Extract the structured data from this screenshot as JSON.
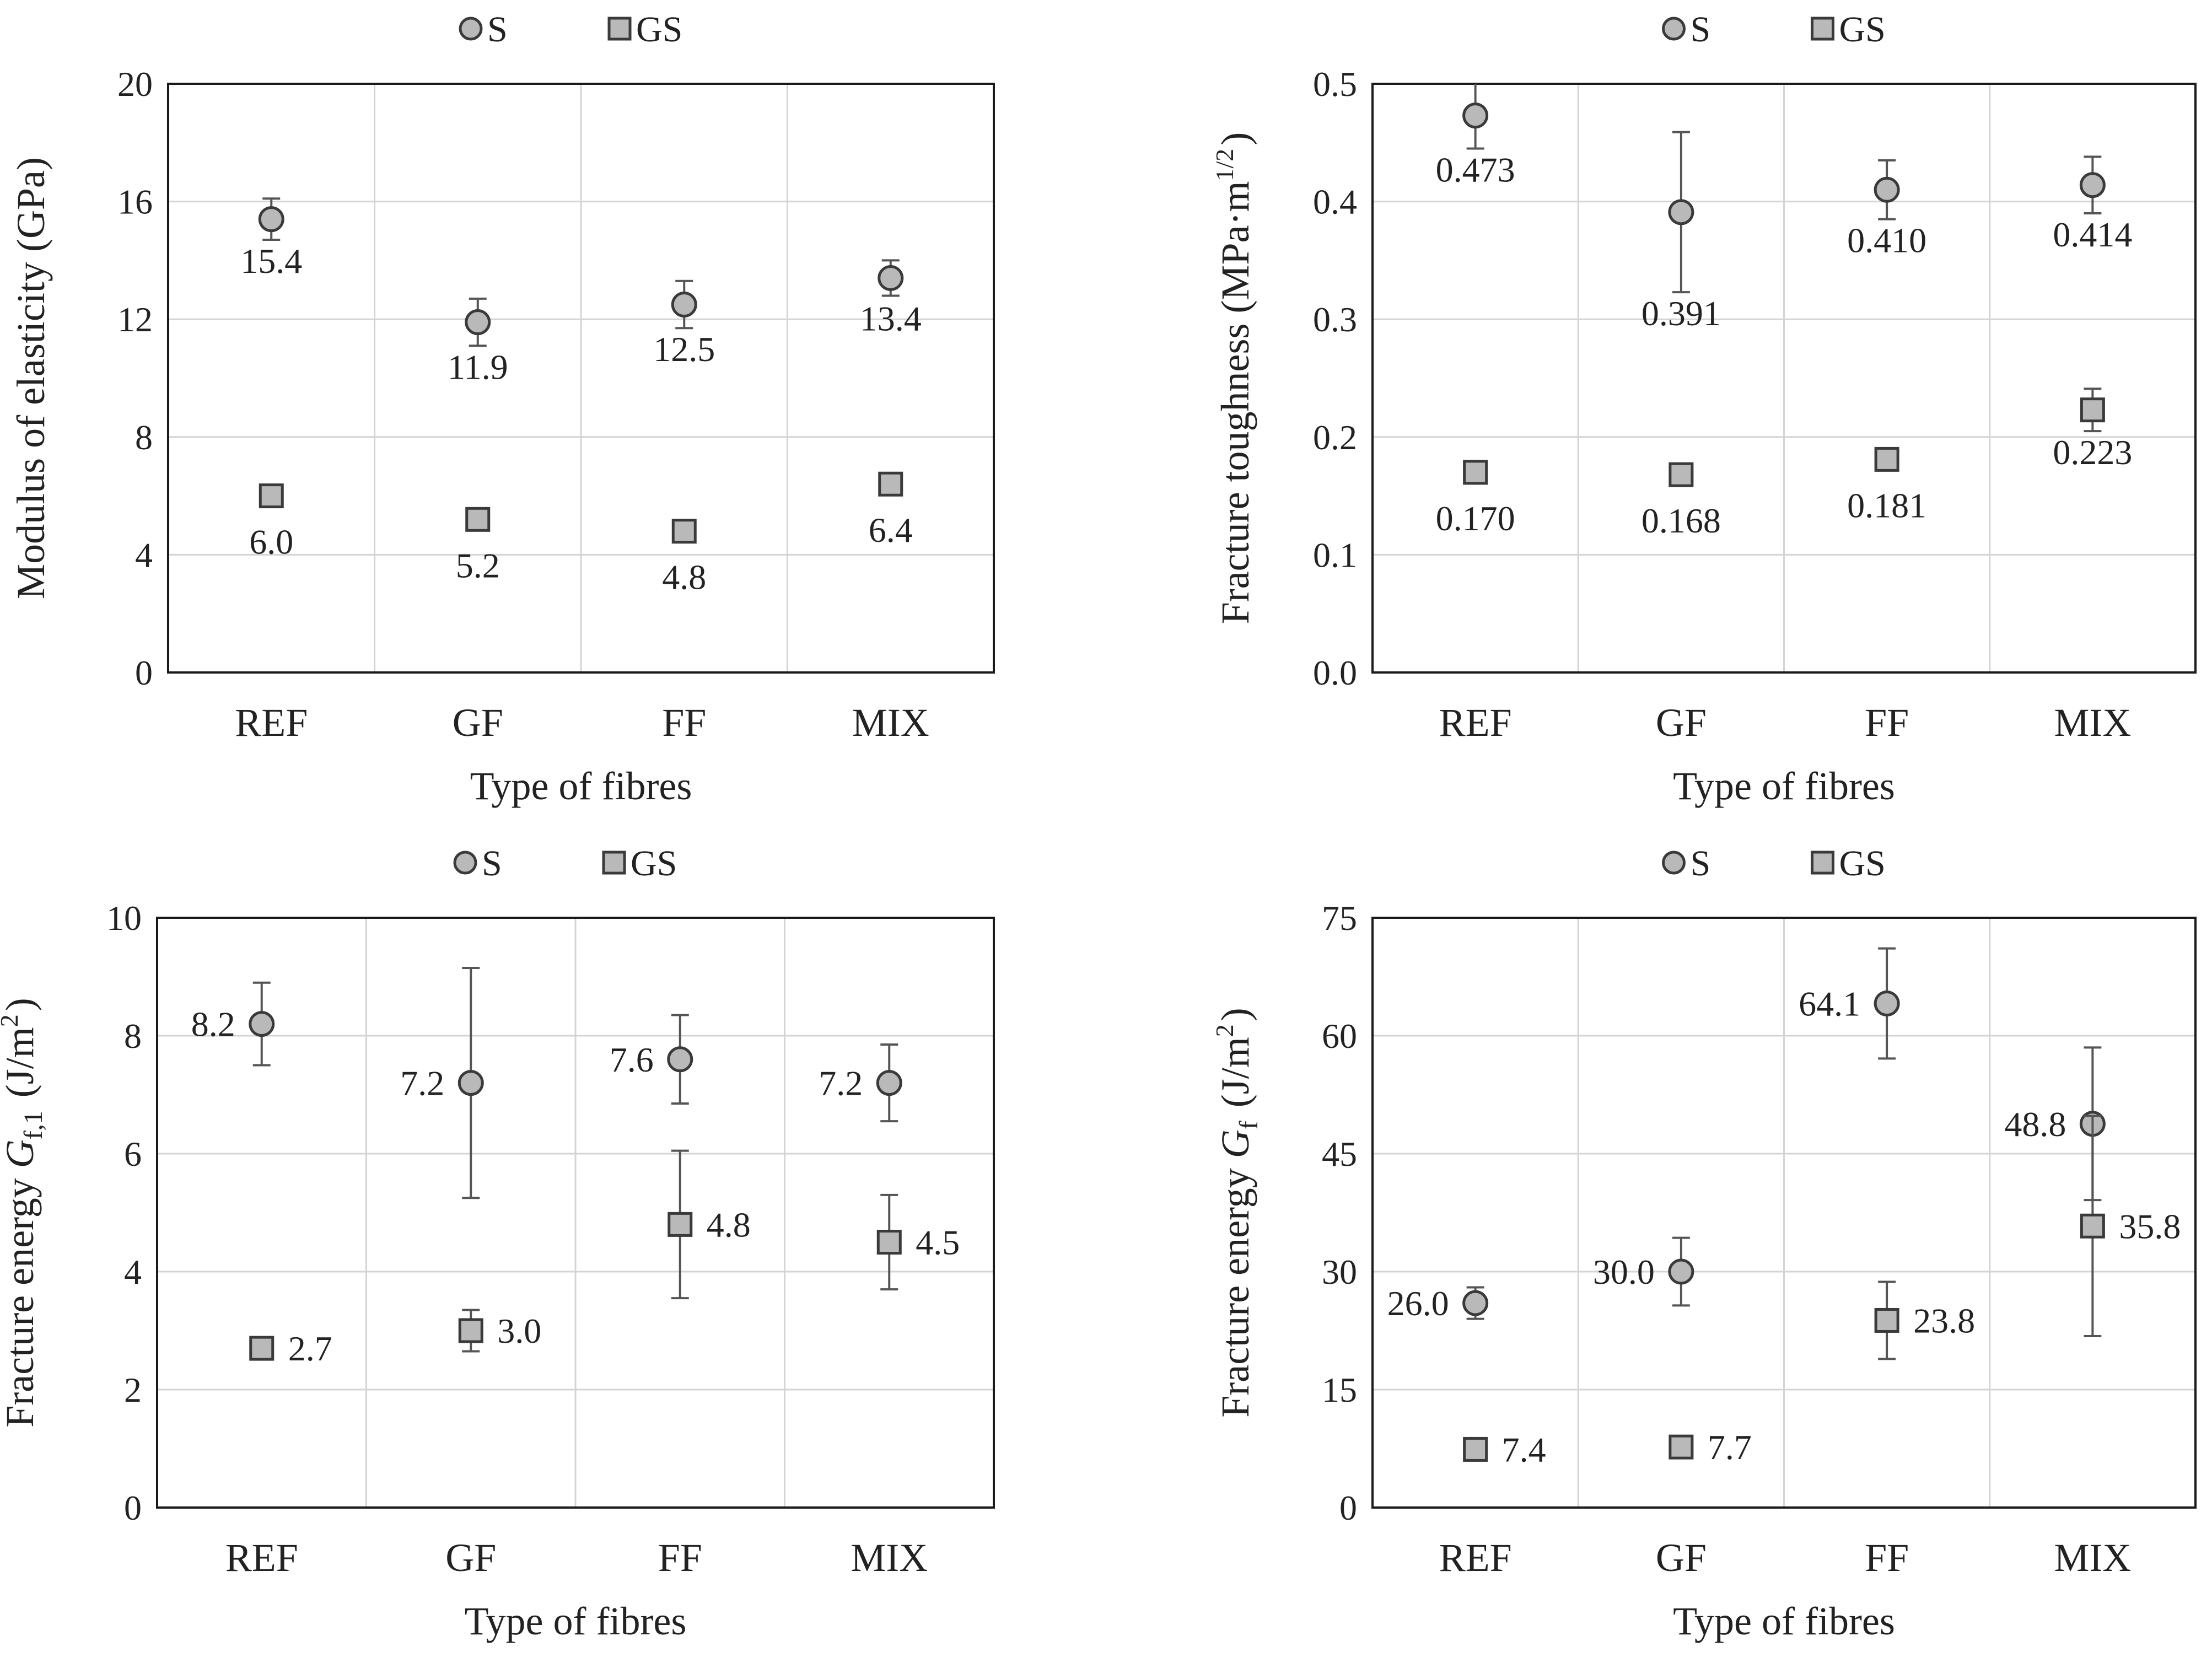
{
  "chart_data": [
    {
      "type": "scatter",
      "xlabel": "Type of fibres",
      "ylabel": "Modulus of elasticity (GPa)",
      "ylim": [
        0,
        20
      ],
      "yticks": [
        0,
        4,
        8,
        12,
        16,
        20
      ],
      "yticklabels": [
        "0",
        "4",
        "8",
        "12",
        "16",
        "20"
      ],
      "grid": true,
      "legend": "top-center",
      "categories": [
        "REF",
        "GF",
        "FF",
        "MIX"
      ],
      "series": [
        {
          "name": "S",
          "marker": "circle",
          "values": [
            15.4,
            11.9,
            12.5,
            13.4
          ],
          "errors": [
            0.7,
            0.8,
            0.8,
            0.6
          ],
          "labels": [
            "15.4",
            "11.9",
            "12.5",
            "13.4"
          ]
        },
        {
          "name": "GS",
          "marker": "square",
          "values": [
            6.0,
            5.2,
            4.8,
            6.4
          ],
          "errors": [
            0,
            0,
            0,
            0
          ],
          "labels": [
            "6.0",
            "5.2",
            "4.8",
            "6.4"
          ]
        }
      ]
    },
    {
      "type": "scatter",
      "xlabel": "Type of fibres",
      "ylabel": "Fracture toughness (MPa·m",
      "ylabel_sup": "1/2",
      "ylabel_suffix": ")",
      "ylim": [
        0,
        0.5
      ],
      "yticks": [
        0,
        0.1,
        0.2,
        0.3,
        0.4,
        0.5
      ],
      "yticklabels": [
        "0.0",
        "0.1",
        "0.2",
        "0.3",
        "0.4",
        "0.5"
      ],
      "grid": true,
      "legend": "top-center",
      "categories": [
        "REF",
        "GF",
        "FF",
        "MIX"
      ],
      "series": [
        {
          "name": "S",
          "marker": "circle",
          "values": [
            0.473,
            0.391,
            0.41,
            0.414
          ],
          "errors": [
            0.028,
            0.068,
            0.025,
            0.024
          ],
          "labels": [
            "0.473",
            "0.391",
            "0.410",
            "0.414"
          ]
        },
        {
          "name": "GS",
          "marker": "square",
          "values": [
            0.17,
            0.168,
            0.181,
            0.223
          ],
          "errors": [
            0,
            0,
            0,
            0.018
          ],
          "labels": [
            "0.170",
            "0.168",
            "0.181",
            "0.223"
          ]
        }
      ]
    },
    {
      "type": "scatter",
      "xlabel": "Type of fibres",
      "ylabel": "Fracture energy ",
      "ylabel_italic": "G",
      "ylabel_sub": "f,1",
      "ylabel_unit": " (J/m",
      "ylabel_unit_sup": "2",
      "ylabel_suffix": ")",
      "ylim": [
        0,
        10
      ],
      "yticks": [
        0,
        2,
        4,
        6,
        8,
        10
      ],
      "yticklabels": [
        "0",
        "2",
        "4",
        "6",
        "8",
        "10"
      ],
      "grid": true,
      "legend": "top-center",
      "categories": [
        "REF",
        "GF",
        "FF",
        "MIX"
      ],
      "series": [
        {
          "name": "S",
          "marker": "circle",
          "values": [
            8.2,
            7.2,
            7.6,
            7.2
          ],
          "errors": [
            0.7,
            1.95,
            0.75,
            0.65
          ],
          "labels": [
            "8.2",
            "7.2",
            "7.6",
            "7.2"
          ]
        },
        {
          "name": "GS",
          "marker": "square",
          "values": [
            2.7,
            3.0,
            4.8,
            4.5
          ],
          "errors": [
            0,
            0.35,
            1.25,
            0.8
          ],
          "labels": [
            "2.7",
            "3.0",
            "4.8",
            "4.5"
          ]
        }
      ]
    },
    {
      "type": "scatter",
      "xlabel": "Type of fibres",
      "ylabel": "Fracture energy ",
      "ylabel_italic": "G",
      "ylabel_sub": "f",
      "ylabel_unit": " (J/m",
      "ylabel_unit_sup": "2",
      "ylabel_suffix": ")",
      "ylim": [
        0,
        75
      ],
      "yticks": [
        0,
        15,
        30,
        45,
        60,
        75
      ],
      "yticklabels": [
        "0",
        "15",
        "30",
        "45",
        "60",
        "75"
      ],
      "grid": true,
      "legend": "top-center",
      "categories": [
        "REF",
        "GF",
        "FF",
        "MIX"
      ],
      "series": [
        {
          "name": "S",
          "marker": "circle",
          "values": [
            26.0,
            30.0,
            64.1,
            48.8
          ],
          "errors": [
            2.0,
            4.3,
            7.0,
            9.7
          ],
          "labels": [
            "26.0",
            "30.0",
            "64.1",
            "48.8"
          ]
        },
        {
          "name": "GS",
          "marker": "square",
          "values": [
            7.4,
            7.7,
            23.8,
            35.8
          ],
          "errors": [
            0,
            0,
            4.9,
            14.0
          ],
          "labels": [
            "7.4",
            "7.7",
            "23.8",
            "35.8"
          ]
        }
      ]
    }
  ]
}
